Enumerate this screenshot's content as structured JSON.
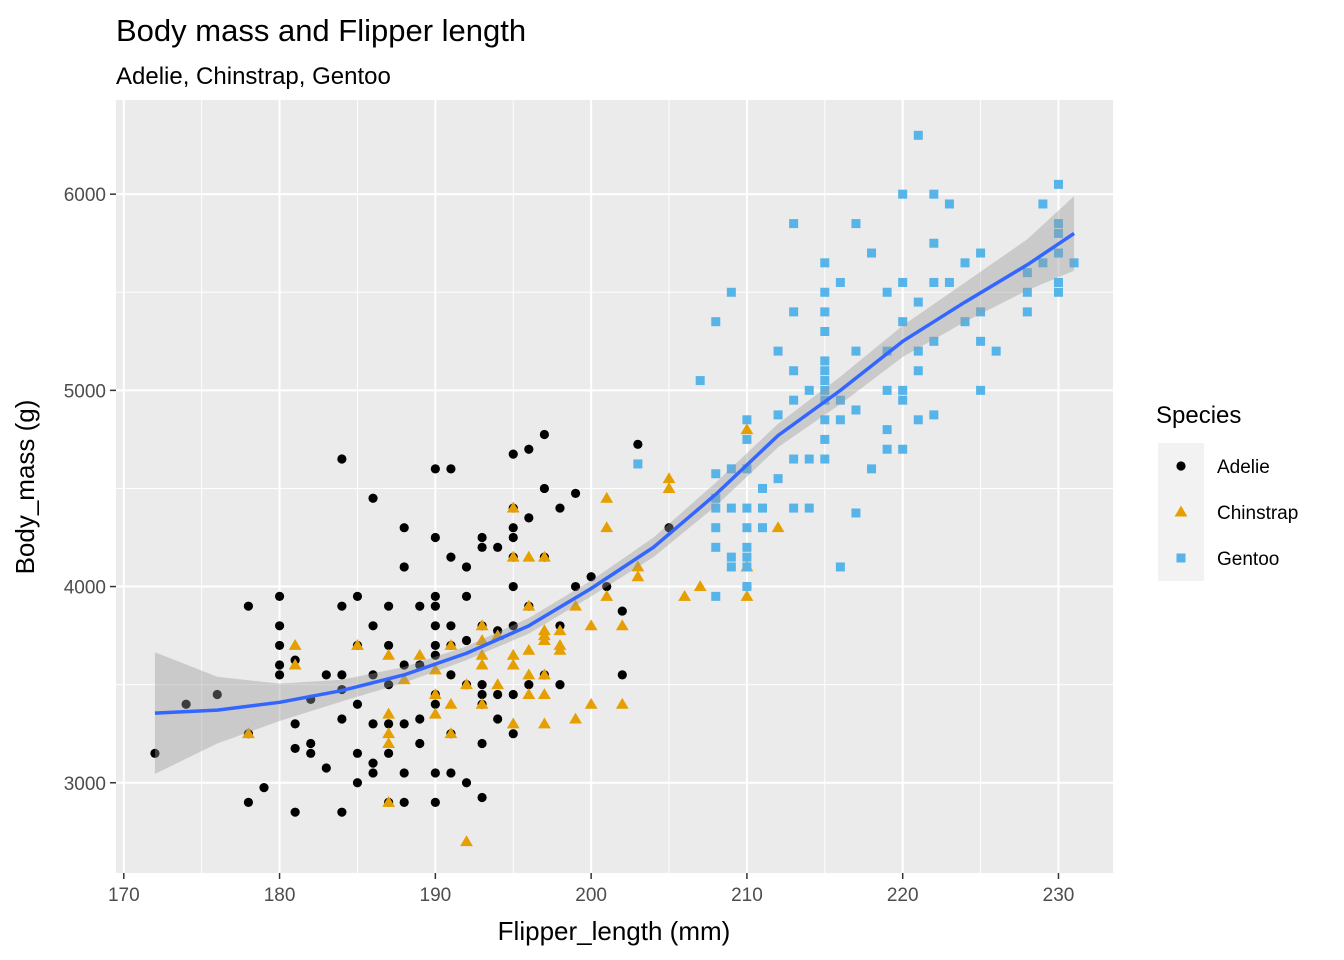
{
  "chart_data": {
    "type": "scatter",
    "title": "Body mass and Flipper length",
    "subtitle": "Adelie, Chinstrap, Gentoo",
    "xlabel": "Flipper_length (mm)",
    "ylabel": "Body_mass (g)",
    "xlim": [
      169.5,
      233.5
    ],
    "ylim": [
      2540,
      6480
    ],
    "xticks": [
      170,
      180,
      190,
      200,
      210,
      220,
      230
    ],
    "yticks": [
      3000,
      4000,
      5000,
      6000
    ],
    "grid": true,
    "legend": {
      "title": "Species",
      "position": "right"
    },
    "series": [
      {
        "name": "Adelie",
        "marker": "circle",
        "color": "#000000",
        "points": [
          [
            172,
            3150
          ],
          [
            174,
            3400
          ],
          [
            176,
            3450
          ],
          [
            178,
            3900
          ],
          [
            178,
            3250
          ],
          [
            178,
            2900
          ],
          [
            179,
            2975
          ],
          [
            180,
            3950
          ],
          [
            180,
            3800
          ],
          [
            180,
            3700
          ],
          [
            180,
            3600
          ],
          [
            180,
            3550
          ],
          [
            181,
            3625
          ],
          [
            181,
            3300
          ],
          [
            181,
            3175
          ],
          [
            181,
            2850
          ],
          [
            182,
            3425
          ],
          [
            182,
            3200
          ],
          [
            182,
            3150
          ],
          [
            183,
            3550
          ],
          [
            183,
            3075
          ],
          [
            184,
            4650
          ],
          [
            184,
            3900
          ],
          [
            184,
            3550
          ],
          [
            184,
            3475
          ],
          [
            184,
            3325
          ],
          [
            184,
            2850
          ],
          [
            185,
            3950
          ],
          [
            185,
            3700
          ],
          [
            185,
            3400
          ],
          [
            185,
            3150
          ],
          [
            185,
            3000
          ],
          [
            186,
            4450
          ],
          [
            186,
            3800
          ],
          [
            186,
            3550
          ],
          [
            186,
            3300
          ],
          [
            186,
            3100
          ],
          [
            186,
            3050
          ],
          [
            187,
            3900
          ],
          [
            187,
            3700
          ],
          [
            187,
            3500
          ],
          [
            187,
            3300
          ],
          [
            187,
            3150
          ],
          [
            187,
            2900
          ],
          [
            188,
            4300
          ],
          [
            188,
            4100
          ],
          [
            188,
            3600
          ],
          [
            188,
            3300
          ],
          [
            188,
            3050
          ],
          [
            188,
            2900
          ],
          [
            189,
            3900
          ],
          [
            189,
            3600
          ],
          [
            189,
            3325
          ],
          [
            189,
            3200
          ],
          [
            190,
            4600
          ],
          [
            190,
            4250
          ],
          [
            190,
            3950
          ],
          [
            190,
            3900
          ],
          [
            190,
            3800
          ],
          [
            190,
            3700
          ],
          [
            190,
            3650
          ],
          [
            190,
            3450
          ],
          [
            190,
            3400
          ],
          [
            190,
            3050
          ],
          [
            190,
            2900
          ],
          [
            191,
            4600
          ],
          [
            191,
            4150
          ],
          [
            191,
            3800
          ],
          [
            191,
            3700
          ],
          [
            191,
            3550
          ],
          [
            191,
            3250
          ],
          [
            191,
            3050
          ],
          [
            192,
            4100
          ],
          [
            192,
            3950
          ],
          [
            192,
            3725
          ],
          [
            192,
            3500
          ],
          [
            192,
            3000
          ],
          [
            193,
            4250
          ],
          [
            193,
            4200
          ],
          [
            193,
            3800
          ],
          [
            193,
            3500
          ],
          [
            193,
            3450
          ],
          [
            193,
            3400
          ],
          [
            193,
            3200
          ],
          [
            193,
            2925
          ],
          [
            194,
            4200
          ],
          [
            194,
            3775
          ],
          [
            194,
            3450
          ],
          [
            194,
            3325
          ],
          [
            195,
            4675
          ],
          [
            195,
            4400
          ],
          [
            195,
            4300
          ],
          [
            195,
            4250
          ],
          [
            195,
            4150
          ],
          [
            195,
            4000
          ],
          [
            195,
            3800
          ],
          [
            195,
            3450
          ],
          [
            195,
            3250
          ],
          [
            196,
            4700
          ],
          [
            196,
            4350
          ],
          [
            196,
            3900
          ],
          [
            196,
            3500
          ],
          [
            197,
            4775
          ],
          [
            197,
            4500
          ],
          [
            197,
            4150
          ],
          [
            197,
            3550
          ],
          [
            198,
            4400
          ],
          [
            198,
            3800
          ],
          [
            198,
            3500
          ],
          [
            199,
            4475
          ],
          [
            199,
            4000
          ],
          [
            200,
            4050
          ],
          [
            201,
            4000
          ],
          [
            202,
            3875
          ],
          [
            202,
            3550
          ],
          [
            203,
            4725
          ],
          [
            205,
            4300
          ],
          [
            210,
            4000
          ]
        ]
      },
      {
        "name": "Chinstrap",
        "marker": "triangle",
        "color": "#e69f00",
        "points": [
          [
            178,
            3250
          ],
          [
            181,
            3700
          ],
          [
            181,
            3600
          ],
          [
            185,
            3700
          ],
          [
            187,
            3650
          ],
          [
            187,
            3350
          ],
          [
            187,
            3250
          ],
          [
            187,
            3200
          ],
          [
            187,
            2900
          ],
          [
            188,
            3525
          ],
          [
            189,
            3650
          ],
          [
            190,
            3575
          ],
          [
            190,
            3450
          ],
          [
            190,
            3350
          ],
          [
            191,
            3700
          ],
          [
            191,
            3400
          ],
          [
            191,
            3250
          ],
          [
            192,
            3500
          ],
          [
            192,
            2700
          ],
          [
            193,
            3800
          ],
          [
            193,
            3725
          ],
          [
            193,
            3650
          ],
          [
            193,
            3600
          ],
          [
            193,
            3400
          ],
          [
            194,
            3750
          ],
          [
            194,
            3500
          ],
          [
            195,
            4400
          ],
          [
            195,
            4150
          ],
          [
            195,
            3650
          ],
          [
            195,
            3600
          ],
          [
            195,
            3300
          ],
          [
            196,
            4150
          ],
          [
            196,
            3900
          ],
          [
            196,
            3675
          ],
          [
            196,
            3550
          ],
          [
            196,
            3450
          ],
          [
            197,
            4150
          ],
          [
            197,
            3775
          ],
          [
            197,
            3750
          ],
          [
            197,
            3725
          ],
          [
            197,
            3550
          ],
          [
            197,
            3450
          ],
          [
            197,
            3300
          ],
          [
            198,
            3775
          ],
          [
            198,
            3700
          ],
          [
            198,
            3675
          ],
          [
            199,
            3900
          ],
          [
            199,
            3325
          ],
          [
            200,
            3800
          ],
          [
            200,
            3400
          ],
          [
            201,
            4450
          ],
          [
            201,
            4300
          ],
          [
            201,
            3950
          ],
          [
            202,
            3800
          ],
          [
            202,
            3400
          ],
          [
            203,
            4100
          ],
          [
            203,
            4050
          ],
          [
            205,
            4550
          ],
          [
            205,
            4500
          ],
          [
            206,
            3950
          ],
          [
            207,
            4000
          ],
          [
            210,
            4800
          ],
          [
            210,
            4100
          ],
          [
            210,
            3950
          ],
          [
            212,
            4300
          ]
        ]
      },
      {
        "name": "Gentoo",
        "marker": "square",
        "color": "#56b4e9",
        "points": [
          [
            203,
            4625
          ],
          [
            207,
            5050
          ],
          [
            208,
            5350
          ],
          [
            208,
            4575
          ],
          [
            208,
            4450
          ],
          [
            208,
            4400
          ],
          [
            208,
            4300
          ],
          [
            208,
            4200
          ],
          [
            208,
            3950
          ],
          [
            209,
            5500
          ],
          [
            209,
            4600
          ],
          [
            209,
            4400
          ],
          [
            209,
            4150
          ],
          [
            209,
            4100
          ],
          [
            210,
            4850
          ],
          [
            210,
            4750
          ],
          [
            210,
            4600
          ],
          [
            210,
            4400
          ],
          [
            210,
            4300
          ],
          [
            210,
            4200
          ],
          [
            210,
            4150
          ],
          [
            210,
            4100
          ],
          [
            210,
            4000
          ],
          [
            211,
            4500
          ],
          [
            211,
            4400
          ],
          [
            211,
            4300
          ],
          [
            212,
            5200
          ],
          [
            212,
            4875
          ],
          [
            212,
            4550
          ],
          [
            213,
            5850
          ],
          [
            213,
            5400
          ],
          [
            213,
            5100
          ],
          [
            213,
            4950
          ],
          [
            213,
            4650
          ],
          [
            213,
            4400
          ],
          [
            214,
            5000
          ],
          [
            214,
            4650
          ],
          [
            214,
            4400
          ],
          [
            215,
            5650
          ],
          [
            215,
            5500
          ],
          [
            215,
            5400
          ],
          [
            215,
            5300
          ],
          [
            215,
            5150
          ],
          [
            215,
            5100
          ],
          [
            215,
            5050
          ],
          [
            215,
            5000
          ],
          [
            215,
            4950
          ],
          [
            215,
            4850
          ],
          [
            215,
            4750
          ],
          [
            215,
            4650
          ],
          [
            216,
            5550
          ],
          [
            216,
            4950
          ],
          [
            216,
            4850
          ],
          [
            216,
            4100
          ],
          [
            217,
            5850
          ],
          [
            217,
            5200
          ],
          [
            217,
            4900
          ],
          [
            217,
            4375
          ],
          [
            218,
            5700
          ],
          [
            218,
            4600
          ],
          [
            219,
            5500
          ],
          [
            219,
            5200
          ],
          [
            219,
            5000
          ],
          [
            219,
            4800
          ],
          [
            219,
            4700
          ],
          [
            220,
            6000
          ],
          [
            220,
            5550
          ],
          [
            220,
            5350
          ],
          [
            220,
            5000
          ],
          [
            220,
            4950
          ],
          [
            220,
            4700
          ],
          [
            221,
            6300
          ],
          [
            221,
            5450
          ],
          [
            221,
            5200
          ],
          [
            221,
            5100
          ],
          [
            221,
            4850
          ],
          [
            222,
            6000
          ],
          [
            222,
            5750
          ],
          [
            222,
            5550
          ],
          [
            222,
            5250
          ],
          [
            222,
            4875
          ],
          [
            223,
            5950
          ],
          [
            223,
            5550
          ],
          [
            224,
            5650
          ],
          [
            224,
            5350
          ],
          [
            225,
            5700
          ],
          [
            225,
            5400
          ],
          [
            225,
            5250
          ],
          [
            225,
            5000
          ],
          [
            226,
            5200
          ],
          [
            228,
            5600
          ],
          [
            228,
            5500
          ],
          [
            228,
            5400
          ],
          [
            229,
            5950
          ],
          [
            229,
            5650
          ],
          [
            230,
            6050
          ],
          [
            230,
            5850
          ],
          [
            230,
            5800
          ],
          [
            230,
            5700
          ],
          [
            230,
            5550
          ],
          [
            230,
            5500
          ],
          [
            231,
            5650
          ]
        ]
      }
    ],
    "smooth": {
      "name": "loess",
      "color": "#3366ff",
      "band_color": "#999999",
      "x": [
        172,
        176,
        180,
        184,
        188,
        192,
        196,
        200,
        204,
        208,
        212,
        216,
        220,
        224,
        228,
        231
      ],
      "y": [
        3355,
        3370,
        3410,
        3470,
        3550,
        3660,
        3800,
        3990,
        4200,
        4470,
        4770,
        5000,
        5250,
        5450,
        5640,
        5800
      ],
      "lower": [
        3045,
        3200,
        3315,
        3415,
        3510,
        3625,
        3760,
        3950,
        4150,
        4410,
        4710,
        4930,
        5170,
        5350,
        5510,
        5610
      ],
      "upper": [
        3665,
        3540,
        3505,
        3525,
        3590,
        3695,
        3840,
        4030,
        4250,
        4530,
        4830,
        5070,
        5330,
        5550,
        5770,
        5990
      ]
    }
  }
}
